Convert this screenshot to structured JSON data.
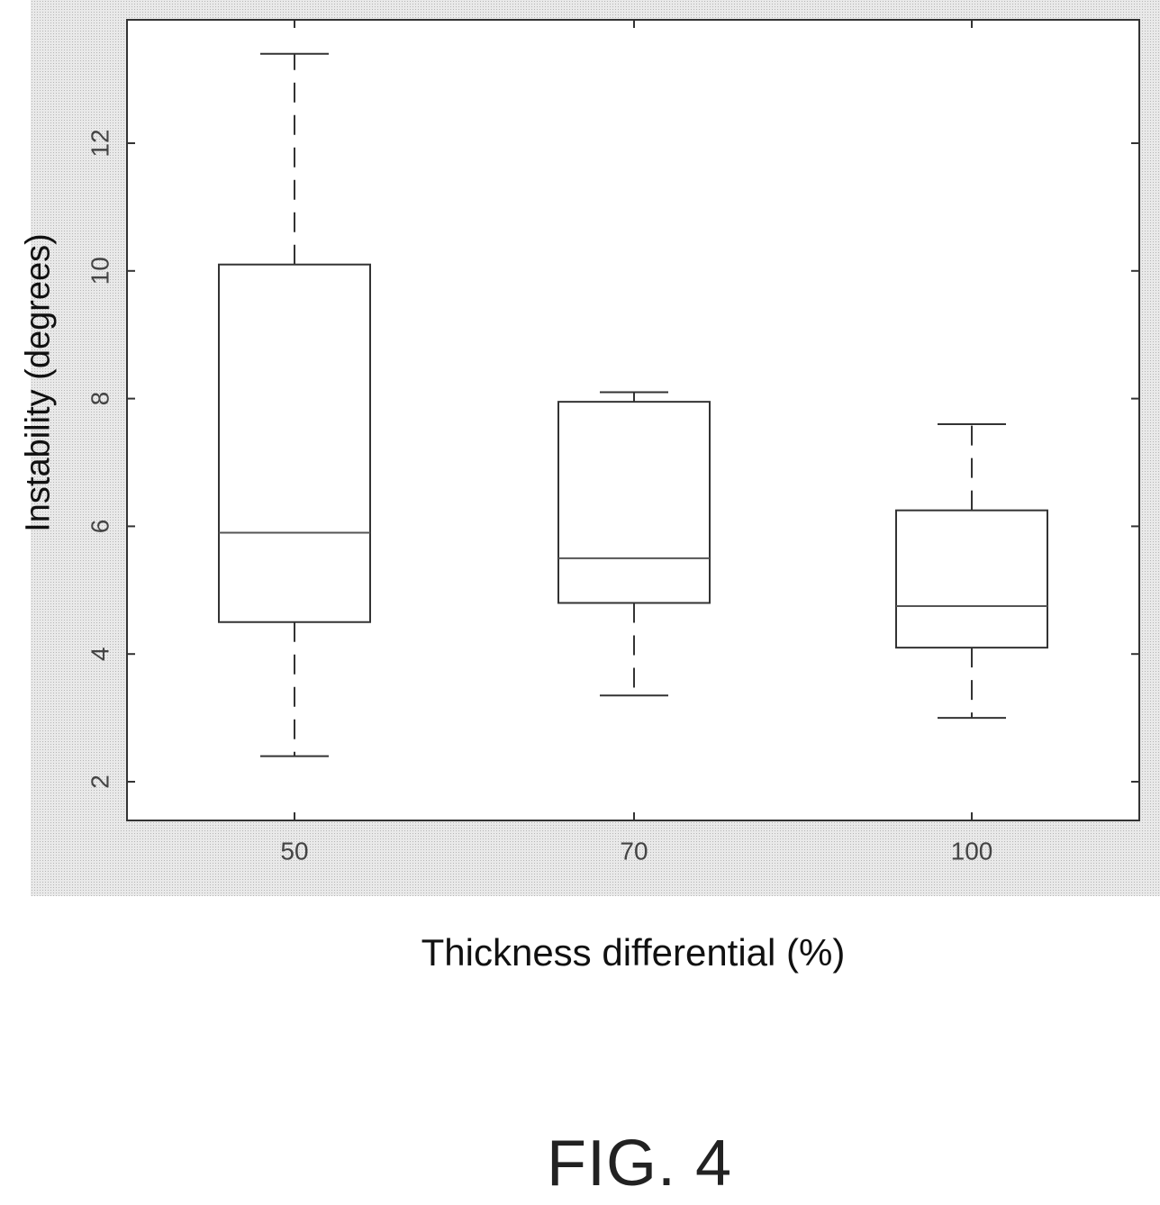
{
  "chart_data": {
    "type": "boxplot",
    "xlabel": "Thickness differential (%)",
    "ylabel": "Instability (degrees)",
    "categories": [
      "50",
      "70",
      "100"
    ],
    "ylim": [
      1.4,
      13.4
    ],
    "yticks": [
      2,
      4,
      6,
      8,
      10,
      12
    ],
    "grid": false,
    "boxes": [
      {
        "category": "50",
        "whisker_low": 2.4,
        "q1": 4.5,
        "median": 5.9,
        "q3": 10.1,
        "whisker_high": 13.4
      },
      {
        "category": "70",
        "whisker_low": 3.35,
        "q1": 4.8,
        "median": 5.5,
        "q3": 7.95,
        "whisker_high": 8.1
      },
      {
        "category": "100",
        "whisker_low": 3.0,
        "q1": 4.1,
        "median": 4.75,
        "q3": 6.25,
        "whisker_high": 7.6
      }
    ]
  },
  "figure": {
    "caption": "FIG. 4"
  }
}
